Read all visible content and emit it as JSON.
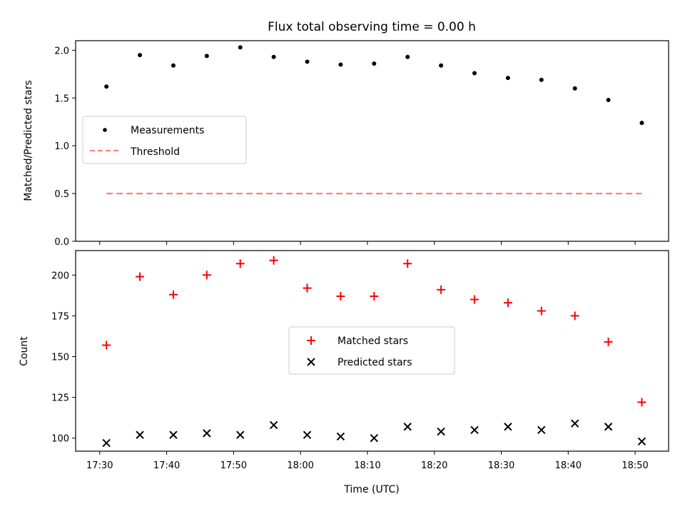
{
  "chart_data": [
    {
      "type": "scatter",
      "title": "Flux total observing time = 0.00 h",
      "xlabel": "",
      "ylabel": "Matched/Predicted stars",
      "ylim": [
        0.0,
        2.1
      ],
      "yticks": [
        0.0,
        0.5,
        1.0,
        1.5,
        2.0
      ],
      "ytick_labels": [
        "0.0",
        "0.5",
        "1.0",
        "1.5",
        "2.0"
      ],
      "legend_position": "center-left",
      "x": [
        "17:31",
        "17:36",
        "17:41",
        "17:46",
        "17:51",
        "17:56",
        "18:01",
        "18:06",
        "18:11",
        "18:16",
        "18:21",
        "18:26",
        "18:31",
        "18:36",
        "18:41",
        "18:46",
        "18:51"
      ],
      "series": [
        {
          "name": "Measurements",
          "marker": "dot",
          "color": "#000000",
          "values": [
            1.62,
            1.95,
            1.84,
            1.94,
            2.03,
            1.93,
            1.88,
            1.85,
            1.86,
            1.93,
            1.84,
            1.76,
            1.71,
            1.69,
            1.6,
            1.48,
            1.24
          ]
        },
        {
          "name": "Threshold",
          "marker": "dashed-line",
          "color": "#ff7f7f",
          "x_range": [
            "17:31",
            "18:51"
          ],
          "value": 0.5
        }
      ]
    },
    {
      "type": "scatter",
      "title": "",
      "xlabel": "Time (UTC)",
      "ylabel": "Count",
      "ylim": [
        92,
        215
      ],
      "yticks": [
        100,
        125,
        150,
        175,
        200
      ],
      "ytick_labels": [
        "100",
        "125",
        "150",
        "175",
        "200"
      ],
      "xticks": [
        "17:30",
        "17:40",
        "17:50",
        "18:00",
        "18:10",
        "18:20",
        "18:30",
        "18:40",
        "18:50"
      ],
      "legend_position": "center",
      "x": [
        "17:31",
        "17:36",
        "17:41",
        "17:46",
        "17:51",
        "17:56",
        "18:01",
        "18:06",
        "18:11",
        "18:16",
        "18:21",
        "18:26",
        "18:31",
        "18:36",
        "18:41",
        "18:46",
        "18:51"
      ],
      "series": [
        {
          "name": "Matched stars",
          "marker": "plus",
          "color": "#ff0000",
          "values": [
            157,
            199,
            188,
            200,
            207,
            209,
            192,
            187,
            187,
            207,
            191,
            185,
            183,
            178,
            175,
            159,
            122
          ]
        },
        {
          "name": "Predicted stars",
          "marker": "x",
          "color": "#000000",
          "values": [
            97,
            102,
            102,
            103,
            102,
            108,
            102,
            101,
            100,
            107,
            104,
            105,
            107,
            105,
            109,
            107,
            98
          ]
        }
      ]
    }
  ]
}
